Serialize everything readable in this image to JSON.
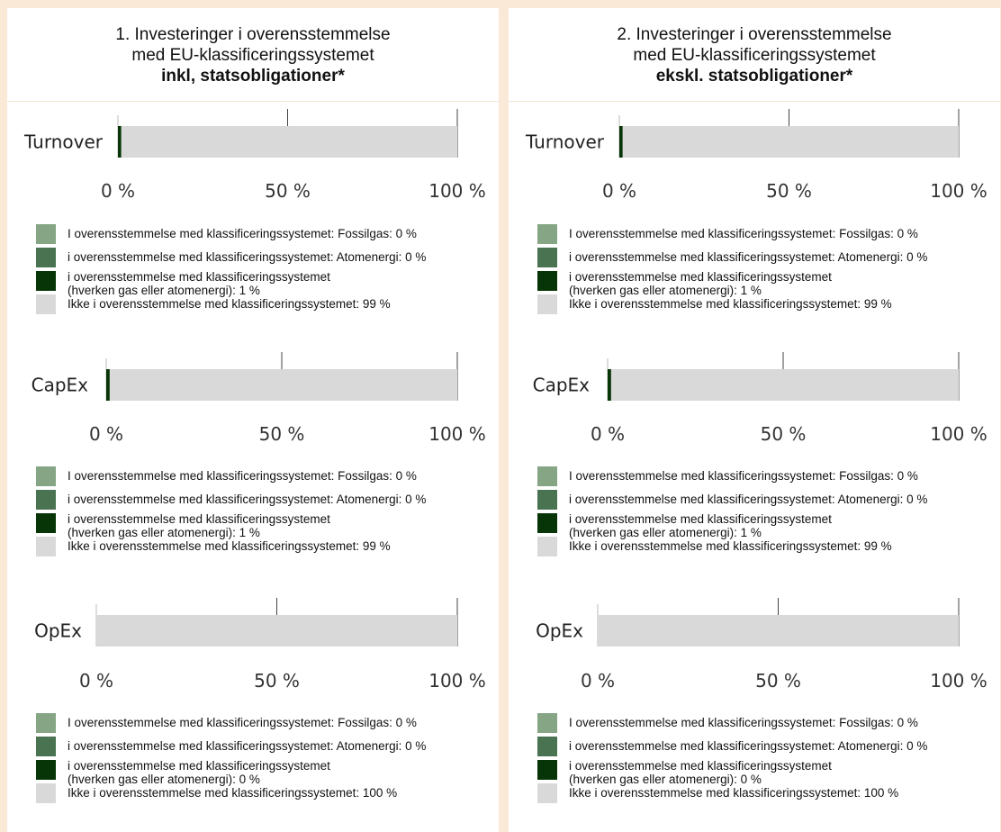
{
  "colors": {
    "fossil": "#85a585",
    "nuclear": "#4a7352",
    "taxonomy_other": "#073507",
    "non_aligned": "#d9d9d9"
  },
  "chart_data": [
    {
      "type": "bar",
      "orientation": "horizontal",
      "stacked": true,
      "title_lines": [
        "1. Investeringer i overensstemmelse",
        "med EU-klassificeringssystemet",
        "inkl, statsobligationer*"
      ],
      "xlim": [
        0,
        100
      ],
      "ticks": [
        "0 %",
        "50 %",
        "100 %"
      ],
      "metrics": [
        {
          "name": "Turnover",
          "values": {
            "fossil": 0,
            "nuclear": 0,
            "taxonomy_other": 1,
            "non_aligned": 99
          },
          "legend": [
            {
              "key": "fossil",
              "lines": [
                "I overensstemmelse med klassificeringssystemet: Fossilgas: 0 %"
              ]
            },
            {
              "key": "nuclear",
              "lines": [
                "i overensstemmelse med klassificeringssystemet: Atomenergi: 0 %"
              ]
            },
            {
              "key": "taxonomy_other",
              "lines": [
                "i overensstemmelse med klassificeringssystemet",
                "(hverken gas eller atomenergi): 1 %"
              ]
            },
            {
              "key": "non_aligned",
              "lines": [
                "Ikke i overensstemmelse med klassificeringssystemet: 99 %"
              ]
            }
          ]
        },
        {
          "name": "CapEx",
          "values": {
            "fossil": 0,
            "nuclear": 0,
            "taxonomy_other": 1,
            "non_aligned": 99
          },
          "legend": [
            {
              "key": "fossil",
              "lines": [
                "I overensstemmelse med klassificeringssystemet: Fossilgas: 0 %"
              ]
            },
            {
              "key": "nuclear",
              "lines": [
                "i overensstemmelse med klassificeringssystemet: Atomenergi: 0 %"
              ]
            },
            {
              "key": "taxonomy_other",
              "lines": [
                "i overensstemmelse med klassificeringssystemet",
                "(hverken gas eller atomenergi): 1 %"
              ]
            },
            {
              "key": "non_aligned",
              "lines": [
                "Ikke i overensstemmelse med klassificeringssystemet: 99 %"
              ]
            }
          ]
        },
        {
          "name": "OpEx",
          "values": {
            "fossil": 0,
            "nuclear": 0,
            "taxonomy_other": 0,
            "non_aligned": 100
          },
          "legend": [
            {
              "key": "fossil",
              "lines": [
                "I overensstemmelse med klassificeringssystemet: Fossilgas: 0 %"
              ]
            },
            {
              "key": "nuclear",
              "lines": [
                "i overensstemmelse med klassificeringssystemet: Atomenergi: 0 %"
              ]
            },
            {
              "key": "taxonomy_other",
              "lines": [
                "i overensstemmelse med klassificeringssystemet",
                "(hverken gas eller atomenergi): 0 %"
              ]
            },
            {
              "key": "non_aligned",
              "lines": [
                "Ikke i overensstemmelse med klassificeringssystemet: 100 %"
              ]
            }
          ]
        }
      ]
    },
    {
      "type": "bar",
      "orientation": "horizontal",
      "stacked": true,
      "title_lines": [
        "2. Investeringer i overensstemmelse",
        "med EU-klassificeringssystemet",
        "ekskl. statsobligationer*"
      ],
      "xlim": [
        0,
        100
      ],
      "ticks": [
        "0 %",
        "50 %",
        "100 %"
      ],
      "metrics": [
        {
          "name": "Turnover",
          "values": {
            "fossil": 0,
            "nuclear": 0,
            "taxonomy_other": 1,
            "non_aligned": 99
          },
          "legend": [
            {
              "key": "fossil",
              "lines": [
                "I overensstemmelse med klassificeringssystemet: Fossilgas: 0 %"
              ]
            },
            {
              "key": "nuclear",
              "lines": [
                "i overensstemmelse med klassificeringssystemet: Atomenergi: 0 %"
              ]
            },
            {
              "key": "taxonomy_other",
              "lines": [
                "i overensstemmelse med klassificeringssystemet",
                "(hverken gas eller atomenergi): 1 %"
              ]
            },
            {
              "key": "non_aligned",
              "lines": [
                "Ikke i overensstemmelse med klassificeringssystemet: 99 %"
              ]
            }
          ]
        },
        {
          "name": "CapEx",
          "values": {
            "fossil": 0,
            "nuclear": 0,
            "taxonomy_other": 1,
            "non_aligned": 99
          },
          "legend": [
            {
              "key": "fossil",
              "lines": [
                "I overensstemmelse med klassificeringssystemet: Fossilgas: 0 %"
              ]
            },
            {
              "key": "nuclear",
              "lines": [
                "i overensstemmelse med klassificeringssystemet: Atomenergi: 0 %"
              ]
            },
            {
              "key": "taxonomy_other",
              "lines": [
                "i overensstemmelse med klassificeringssystemet",
                "(hverken gas eller atomenergi): 1 %"
              ]
            },
            {
              "key": "non_aligned",
              "lines": [
                "Ikke i overensstemmelse med klassificeringssystemet: 99 %"
              ]
            }
          ]
        },
        {
          "name": "OpEx",
          "values": {
            "fossil": 0,
            "nuclear": 0,
            "taxonomy_other": 0,
            "non_aligned": 100
          },
          "legend": [
            {
              "key": "fossil",
              "lines": [
                "I overensstemmelse med klassificeringssystemet: Fossilgas: 0 %"
              ]
            },
            {
              "key": "nuclear",
              "lines": [
                "i overensstemmelse med klassificeringssystemet: Atomenergi: 0 %"
              ]
            },
            {
              "key": "taxonomy_other",
              "lines": [
                "i overensstemmelse med klassificeringssystemet",
                "(hverken gas eller atomenergi): 0 %"
              ]
            },
            {
              "key": "non_aligned",
              "lines": [
                "Ikke i overensstemmelse med klassificeringssystemet: 100 %"
              ]
            }
          ]
        }
      ]
    }
  ]
}
